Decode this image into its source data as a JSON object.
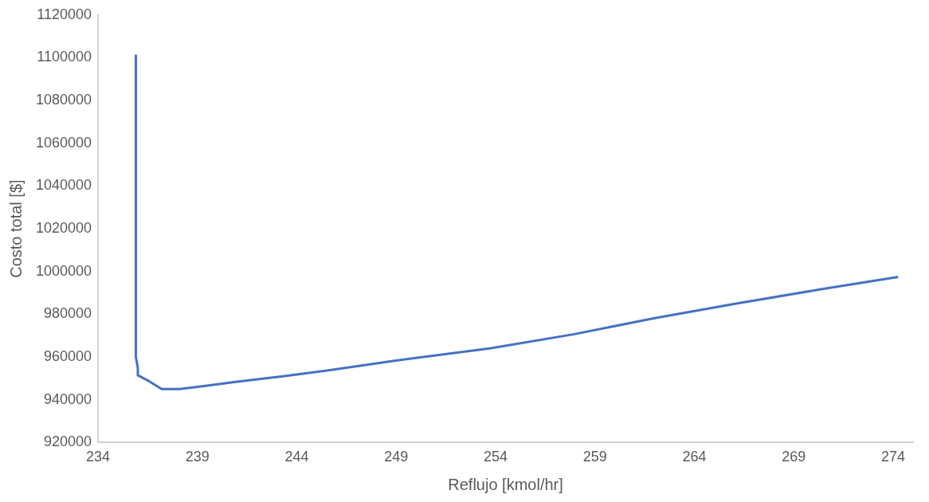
{
  "chart_data": {
    "type": "line",
    "xlabel": "Reflujo [kmol/hr]",
    "ylabel": "Costo total [$]",
    "xlim": [
      234,
      275
    ],
    "xticks": [
      234,
      239,
      244,
      249,
      254,
      259,
      264,
      269,
      274
    ],
    "ylim": [
      920000,
      1120000
    ],
    "yticks": [
      920000,
      940000,
      960000,
      980000,
      1000000,
      1020000,
      1040000,
      1060000,
      1080000,
      1100000,
      1120000
    ],
    "grid": false,
    "legend": false,
    "marker": "none",
    "line_style": "solid",
    "series": [
      {
        "color": "#4472c4",
        "x": [
          235.9,
          235.9,
          236.0,
          236.0,
          236.6,
          237.2,
          238.1,
          239.4,
          241,
          243.3,
          245.6,
          248.7,
          253.7,
          257.9,
          262,
          266.1,
          270.3,
          274.2
        ],
        "values": [
          1101000,
          960000,
          955000,
          951500,
          948500,
          945000,
          945000,
          946500,
          948500,
          951000,
          953800,
          958000,
          964000,
          970600,
          978200,
          985000,
          991600,
          997400
        ]
      }
    ]
  }
}
